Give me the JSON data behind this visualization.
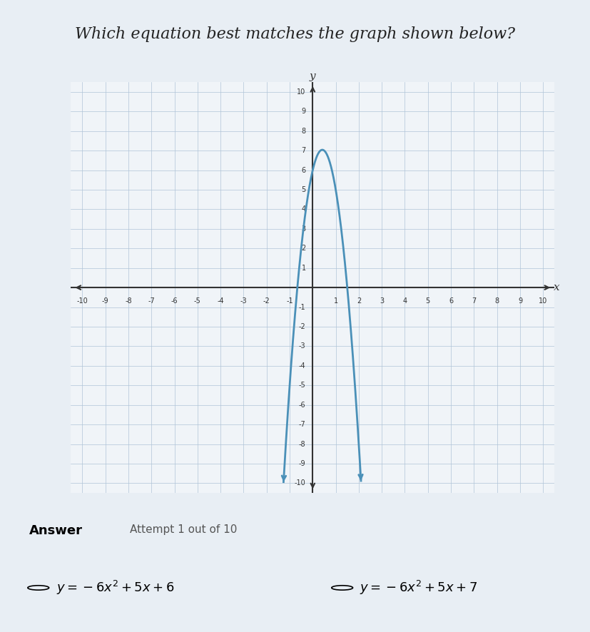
{
  "title": "Which equation best matches the graph shown below?",
  "title_fontsize": 16,
  "title_color": "#222222",
  "bg_color": "#f0f4f8",
  "grid_color": "#b0c4d8",
  "axis_color": "#333333",
  "curve_color": "#4a90b8",
  "curve_linewidth": 2.0,
  "xlim": [
    -10,
    10
  ],
  "ylim": [
    -10,
    10
  ],
  "xticks": [
    -10,
    -9,
    -8,
    -7,
    -6,
    -5,
    -4,
    -3,
    -2,
    -1,
    0,
    1,
    2,
    3,
    4,
    5,
    6,
    7,
    8,
    9,
    10
  ],
  "yticks": [
    -10,
    -9,
    -8,
    -7,
    -6,
    -5,
    -4,
    -3,
    -2,
    -1,
    0,
    1,
    2,
    3,
    4,
    5,
    6,
    7,
    8,
    9,
    10
  ],
  "xlabel": "x",
  "ylabel": "y",
  "answer_label": "Answer",
  "attempt_label": "Attempt 1 out of 10",
  "option1": "$y = -6x^2 + 5x + 6$",
  "option2": "$y = -6x^2 + 5x + 7$",
  "a": -6,
  "b": 5,
  "c": 6
}
